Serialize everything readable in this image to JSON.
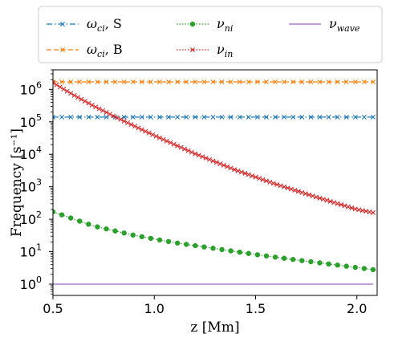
{
  "chart_data": {
    "type": "line",
    "xlabel": "z [Mm]",
    "ylabel": "Frequency [s⁻¹]",
    "y_scale": "log",
    "xlim": [
      0.5,
      2.1
    ],
    "ylim": [
      0.45,
      4000000
    ],
    "x_ticks": [
      {
        "value": 0.5,
        "label": "0.5"
      },
      {
        "value": 1.0,
        "label": "1.0"
      },
      {
        "value": 1.5,
        "label": "1.5"
      },
      {
        "value": 2.0,
        "label": "2.0"
      }
    ],
    "y_ticks": [
      {
        "value": 1,
        "base": "10",
        "exp": "0"
      },
      {
        "value": 10,
        "base": "10",
        "exp": "1"
      },
      {
        "value": 100,
        "base": "10",
        "exp": "2"
      },
      {
        "value": 1000,
        "base": "10",
        "exp": "3"
      },
      {
        "value": 10000,
        "base": "10",
        "exp": "4"
      },
      {
        "value": 100000,
        "base": "10",
        "exp": "5"
      },
      {
        "value": 1000000,
        "base": "10",
        "exp": "6"
      }
    ],
    "grid": false,
    "legend_position": "top, above plot, 3 columns",
    "series": [
      {
        "name": "ω_ci, S",
        "name_symbol": "ω",
        "name_sub": "ci",
        "name_suffix": ", S",
        "color": "#1f77b4",
        "linestyle": "dashdot",
        "marker": "x",
        "x": [
          0.5,
          2.08
        ],
        "y": [
          140000,
          140000
        ],
        "markers_count": 37
      },
      {
        "name": "ω_ci, B",
        "name_symbol": "ω",
        "name_sub": "ci",
        "name_suffix": ", B",
        "color": "#ff7f0e",
        "linestyle": "dashed",
        "marker": "x",
        "x": [
          0.5,
          2.08
        ],
        "y": [
          1700000,
          1700000
        ],
        "markers_count": 37
      },
      {
        "name": "ν_ni",
        "name_symbol": "ν",
        "name_sub": "ni",
        "name_suffix": "",
        "color": "#2ca02c",
        "linestyle": "dotted",
        "marker": "o",
        "x": [
          0.5,
          0.7,
          0.9,
          1.1,
          1.3,
          1.5,
          1.7,
          1.9,
          2.08
        ],
        "y": [
          170,
          62,
          32,
          19,
          12.5,
          8.2,
          5.6,
          3.9,
          2.8
        ],
        "markers_count": 37
      },
      {
        "name": "ν_in",
        "name_symbol": "ν",
        "name_sub": "in",
        "name_suffix": "",
        "color": "#d62728",
        "linestyle": "dotted",
        "marker": "x",
        "x": [
          0.5,
          0.6,
          0.7,
          0.8,
          0.9,
          1.0,
          1.2,
          1.4,
          1.6,
          1.8,
          2.0,
          2.08
        ],
        "y": [
          1600000,
          680000,
          310000,
          150000,
          75000,
          38000,
          10500,
          3300,
          1200,
          480,
          200,
          160
        ],
        "markers_count": 91
      },
      {
        "name": "ν_wave",
        "name_symbol": "ν",
        "name_sub": "wave",
        "name_suffix": "",
        "color": "#9467bd",
        "linestyle": "solid",
        "marker": "none",
        "x": [
          0.5,
          2.08
        ],
        "y": [
          1,
          1
        ],
        "markers_count": 0
      }
    ]
  }
}
